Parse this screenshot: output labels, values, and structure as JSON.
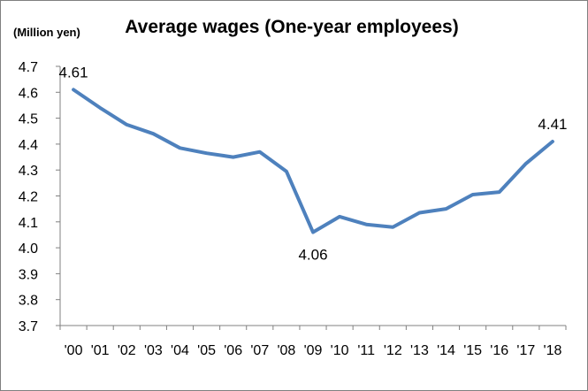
{
  "chart_data": {
    "type": "line",
    "title": "Average wages (One-year employees)",
    "unit_label": "(Million yen)",
    "xlabel": "",
    "ylabel": "",
    "categories": [
      "'00",
      "'01",
      "'02",
      "'03",
      "'04",
      "'05",
      "'06",
      "'07",
      "'08",
      "'09",
      "'10",
      "'11",
      "'12",
      "'13",
      "'14",
      "'15",
      "'16",
      "'17",
      "'18"
    ],
    "series": [
      {
        "values": [
          4.61,
          4.54,
          4.475,
          4.44,
          4.385,
          4.365,
          4.35,
          4.37,
          4.295,
          4.06,
          4.12,
          4.09,
          4.08,
          4.135,
          4.15,
          4.205,
          4.215,
          4.325,
          4.41
        ],
        "color": "#4e81bd"
      }
    ],
    "ylim": [
      3.7,
      4.7
    ],
    "yticks": [
      "3.7",
      "3.8",
      "3.9",
      "4.0",
      "4.1",
      "4.2",
      "4.3",
      "4.4",
      "4.5",
      "4.6",
      "4.7"
    ],
    "grid": false,
    "data_labels": [
      {
        "index": 0,
        "text": "4.61"
      },
      {
        "index": 9,
        "text": "4.06"
      },
      {
        "index": 18,
        "text": "4.41"
      }
    ]
  }
}
